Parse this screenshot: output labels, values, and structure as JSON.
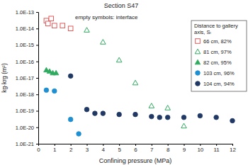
{
  "chart_data": {
    "type": "scatter",
    "title": "Section S47",
    "x_label": "Confining pressure (MPa)",
    "y_label": "kg·krg (m²)",
    "annotations": [
      "empty symbols: interface"
    ],
    "legend_title": "Distance to gallery axis, Sₗ",
    "legend": "upper right",
    "log": "y",
    "grid": false,
    "xlim": [
      0,
      12
    ],
    "xticks": [
      0,
      1,
      2,
      3,
      4,
      5,
      6,
      7,
      8,
      9,
      10,
      11,
      12
    ],
    "ylim": [
      1e-21,
      1e-13
    ],
    "yticks": [
      {
        "value": 1e-21,
        "label": "1.0E-21"
      },
      {
        "value": 1e-20,
        "label": "1.0E-20"
      },
      {
        "value": 1e-19,
        "label": "1.0E-19"
      },
      {
        "value": 1e-18,
        "label": "1.0E-18"
      },
      {
        "value": 1e-17,
        "label": "1.0E-17"
      },
      {
        "value": 1e-16,
        "label": "1.0E-16"
      },
      {
        "value": 1e-15,
        "label": "1.0E-15"
      },
      {
        "value": 1e-14,
        "label": "1.0E-14"
      },
      {
        "value": 1e-13,
        "label": "1.0E-13"
      }
    ],
    "series": [
      {
        "name": "66 cm, 82%",
        "color": "#e05a5a",
        "marker": "square-open",
        "x": [
          0.5,
          0.6,
          0.8,
          1,
          1.5,
          2
        ],
        "values": [
          3e-14,
          2e-14,
          4e-14,
          1.5e-14,
          1.5e-14,
          1e-14
        ]
      },
      {
        "name": "81 cm, 97%",
        "color": "#2eaa5e",
        "marker": "triangle-open",
        "x": [
          3,
          4,
          5,
          6,
          7,
          8,
          9
        ],
        "values": [
          8e-15,
          1.5e-15,
          1.2e-16,
          5e-18,
          2e-19,
          1.5e-19,
          1.2e-20
        ]
      },
      {
        "name": "82 cm, 95%",
        "color": "#2eaa5e",
        "marker": "triangle",
        "x": [
          0.5,
          0.7,
          0.9,
          1.1
        ],
        "values": [
          3e-17,
          2.5e-17,
          2e-17,
          2e-17
        ]
      },
      {
        "name": "103 cm, 96%",
        "color": "#1e8fd0",
        "marker": "circle",
        "x": [
          0.5,
          1,
          2,
          2.5
        ],
        "values": [
          1.8e-18,
          1.6e-18,
          3e-20,
          4e-21
        ]
      },
      {
        "name": "104 cm, 94%",
        "color": "#1f3864",
        "marker": "circle",
        "x": [
          2,
          3,
          3.5,
          4,
          5,
          6,
          7,
          7.5,
          8,
          9,
          10,
          11,
          12
        ],
        "values": [
          1.3e-17,
          1.2e-19,
          7e-20,
          7e-20,
          6e-20,
          6e-20,
          4.5e-20,
          4e-20,
          4e-20,
          4e-20,
          5e-20,
          4e-20,
          2.5e-20
        ]
      }
    ]
  }
}
